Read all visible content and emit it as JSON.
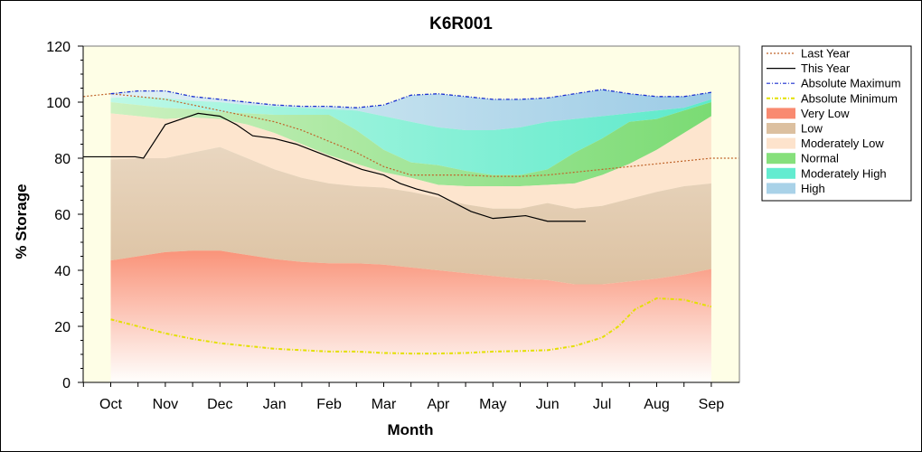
{
  "chart_data": {
    "type": "area",
    "title": "K6R001",
    "xlabel": "Month",
    "ylabel": "% Storage",
    "ylim": [
      0,
      120
    ],
    "yticks": [
      0,
      20,
      40,
      60,
      80,
      100,
      120
    ],
    "months": [
      "Oct",
      "Nov",
      "Dec",
      "Jan",
      "Feb",
      "Mar",
      "Apr",
      "May",
      "Jun",
      "Jul",
      "Aug",
      "Sep"
    ],
    "legend_position": "right",
    "bands": {
      "x": [
        0,
        0.5,
        1,
        1.5,
        2,
        2.5,
        3,
        3.5,
        4,
        4.5,
        5,
        5.5,
        6,
        6.5,
        7,
        7.5,
        8,
        8.5,
        9,
        9.5,
        10,
        10.5,
        11
      ],
      "very_low": [
        43.5,
        45,
        46.5,
        47,
        47,
        45.5,
        44,
        43,
        42.5,
        42.5,
        42,
        41,
        40,
        39,
        38,
        37,
        36.5,
        35,
        35,
        36,
        37,
        38.5,
        40.5
      ],
      "low": [
        79.5,
        80,
        80,
        82,
        84,
        80,
        76,
        73,
        71,
        70,
        69.5,
        68,
        66,
        63.5,
        62,
        62,
        64,
        62,
        63,
        65.5,
        68,
        70,
        71
      ],
      "mod_low": [
        96,
        95,
        94,
        94.5,
        94,
        92,
        89,
        85,
        81,
        78,
        75,
        73,
        70.5,
        70,
        70,
        70,
        70.5,
        71,
        74,
        78,
        83,
        89,
        95
      ],
      "normal": [
        100,
        99,
        98,
        97.5,
        96.5,
        96,
        95.5,
        95.5,
        95.5,
        90,
        83,
        78.5,
        77.5,
        75.5,
        74,
        74,
        76,
        82,
        87,
        93,
        94,
        97,
        100
      ],
      "mod_high": [
        101.5,
        102,
        101.5,
        100.5,
        100,
        99,
        98.5,
        98,
        97.5,
        97,
        95,
        93,
        91,
        90,
        90,
        91,
        93,
        94,
        95,
        96,
        97,
        98,
        101
      ],
      "high": [
        103,
        104,
        104,
        102,
        101,
        100,
        99,
        98.5,
        98.5,
        98,
        99,
        102.5,
        103,
        102,
        101,
        101,
        101.5,
        103,
        104.5,
        103,
        102,
        102,
        103.5
      ]
    },
    "series": [
      {
        "name": "Last Year",
        "style": "dotted",
        "color": "#c0652b",
        "x": [
          -0.5,
          0,
          0.5,
          1,
          1.5,
          2,
          2.5,
          3,
          3.5,
          4,
          4.5,
          5,
          5.5,
          6,
          6.5,
          7,
          7.5,
          8,
          8.5,
          9,
          10,
          11,
          11.5
        ],
        "values": [
          102,
          103,
          102,
          101,
          99,
          97,
          95,
          93,
          90,
          86,
          82,
          77,
          74,
          74,
          74,
          73.5,
          73.5,
          74,
          75,
          76,
          78,
          80,
          80
        ]
      },
      {
        "name": "This Year",
        "style": "solid",
        "color": "#000000",
        "x": [
          -0.5,
          0,
          0.45,
          0.6,
          0.8,
          1,
          1.3,
          1.6,
          2,
          2.3,
          2.6,
          3,
          3.4,
          3.8,
          4.2,
          4.6,
          5,
          5.3,
          5.6,
          6,
          6.3,
          6.6,
          7,
          7.3,
          7.6,
          8,
          8.3,
          8.7
        ],
        "values": [
          80.5,
          80.5,
          80.5,
          80,
          86,
          92,
          94,
          96,
          95,
          92,
          88,
          87,
          85,
          82,
          79,
          76,
          74,
          71,
          69,
          67,
          64,
          61,
          58.5,
          59,
          59.5,
          57.5,
          57.5,
          57.5
        ]
      },
      {
        "name": "Absolute Maximum",
        "style": "dash-dot",
        "color": "#1a2fcf",
        "x": [
          0,
          0.5,
          1,
          1.5,
          2,
          2.5,
          3,
          3.5,
          4,
          4.5,
          5,
          5.5,
          6,
          6.5,
          7,
          7.5,
          8,
          8.5,
          9,
          9.5,
          10,
          10.5,
          11
        ],
        "values": [
          103,
          104,
          104,
          102,
          101,
          100,
          99,
          98.5,
          98.5,
          98,
          99,
          102.5,
          103,
          102,
          101,
          101,
          101.5,
          103,
          104.5,
          103,
          102,
          102,
          103.5
        ]
      },
      {
        "name": "Absolute Minimum",
        "style": "dash-dot",
        "color": "#e3e000",
        "x": [
          0,
          0.5,
          1,
          1.5,
          2,
          2.5,
          3,
          3.5,
          4,
          4.5,
          5,
          5.5,
          6,
          6.5,
          7,
          7.5,
          8,
          8.5,
          9,
          9.3,
          9.6,
          10,
          10.5,
          11
        ],
        "values": [
          22.5,
          20,
          17.5,
          15.5,
          14,
          13,
          12,
          11.5,
          11,
          11,
          10.5,
          10.3,
          10.3,
          10.5,
          11,
          11.2,
          11.5,
          13,
          16,
          20,
          26,
          30,
          29.5,
          27
        ]
      }
    ],
    "legend": [
      {
        "label": "Last Year",
        "kind": "line",
        "color": "#c0652b",
        "style": "dotted"
      },
      {
        "label": "This Year",
        "kind": "line",
        "color": "#000000",
        "style": "solid"
      },
      {
        "label": "Absolute Maximum",
        "kind": "line",
        "color": "#1a2fcf",
        "style": "dash-dot"
      },
      {
        "label": "Absolute Minimum",
        "kind": "line",
        "color": "#e3e000",
        "style": "dash-dot"
      },
      {
        "label": "Very Low",
        "kind": "patch",
        "color": "#f98a70"
      },
      {
        "label": "Low",
        "kind": "patch",
        "color": "#dcc0a0"
      },
      {
        "label": "Moderately Low",
        "kind": "patch",
        "color": "#fde3cc"
      },
      {
        "label": "Normal",
        "kind": "patch",
        "color": "#86e07c"
      },
      {
        "label": "Moderately High",
        "kind": "patch",
        "color": "#63ecd0"
      },
      {
        "label": "High",
        "kind": "patch",
        "color": "#a9d2e8"
      }
    ],
    "colors": {
      "plot_bg": "#fefee6",
      "very_low": "#f98a70",
      "low": "#dcc0a0",
      "mod_low": "#fde3cc",
      "normal": "#86e07c",
      "mod_high": "#63ecd0",
      "high": "#a9d2e8"
    }
  }
}
